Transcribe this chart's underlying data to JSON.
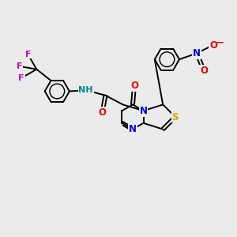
{
  "background_color": "#ebebeb",
  "figsize": [
    3.0,
    3.0
  ],
  "dpi": 100,
  "atom_colors": {
    "C": "#000000",
    "N": "#0000ee",
    "O": "#ee0000",
    "S": "#ccaa00",
    "F": "#cc00cc",
    "H": "#008888"
  },
  "bond_color": "#000000",
  "bond_width": 1.4,
  "font_size": 8.5
}
